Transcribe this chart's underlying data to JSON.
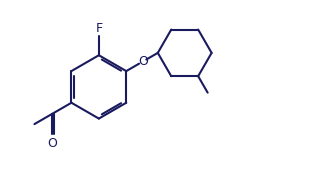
{
  "line_color": "#1a1a5e",
  "line_width": 1.5,
  "background_color": "#ffffff",
  "figsize": [
    3.18,
    1.77
  ],
  "dpi": 100,
  "xlim": [
    -0.5,
    9.5
  ],
  "ylim": [
    0.2,
    5.0
  ]
}
